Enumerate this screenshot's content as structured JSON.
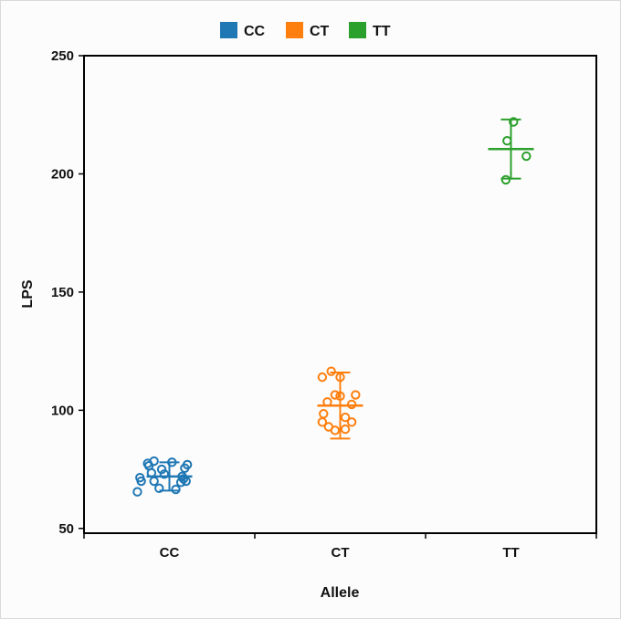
{
  "chart_data": {
    "type": "scatter",
    "subtype": "strip plot with mean and standard deviation bars",
    "xlabel": "Allele",
    "ylabel": "LPS",
    "categories": [
      "CC",
      "CT",
      "TT"
    ],
    "ylim": [
      48,
      250
    ],
    "yticks": [
      50,
      100,
      150,
      200,
      250
    ],
    "legend": {
      "position": "top-center",
      "entries": [
        "CC",
        "CT",
        "TT"
      ]
    },
    "grid": false,
    "series": [
      {
        "name": "CC",
        "color": "#1f77b4",
        "mean": 72,
        "sd": 6,
        "points": [
          {
            "offset": -0.25,
            "y": 65.5
          },
          {
            "offset": -0.23,
            "y": 71.5
          },
          {
            "offset": -0.22,
            "y": 70.0
          },
          {
            "offset": -0.17,
            "y": 77.5
          },
          {
            "offset": -0.16,
            "y": 76.5
          },
          {
            "offset": -0.14,
            "y": 73.5
          },
          {
            "offset": -0.12,
            "y": 78.5
          },
          {
            "offset": -0.12,
            "y": 70.0
          },
          {
            "offset": -0.08,
            "y": 67.0
          },
          {
            "offset": -0.06,
            "y": 75.0
          },
          {
            "offset": -0.04,
            "y": 73.0
          },
          {
            "offset": 0.02,
            "y": 78.0
          },
          {
            "offset": 0.05,
            "y": 66.5
          },
          {
            "offset": 0.09,
            "y": 69.5
          },
          {
            "offset": 0.1,
            "y": 72.0
          },
          {
            "offset": 0.11,
            "y": 71.0
          },
          {
            "offset": 0.12,
            "y": 75.5
          },
          {
            "offset": 0.13,
            "y": 70.0
          },
          {
            "offset": 0.14,
            "y": 77.0
          }
        ]
      },
      {
        "name": "CT",
        "color": "#ff7f0e",
        "mean": 102,
        "sd": 14,
        "points": [
          {
            "offset": -0.14,
            "y": 114.0
          },
          {
            "offset": -0.13,
            "y": 98.5
          },
          {
            "offset": -0.14,
            "y": 95.0
          },
          {
            "offset": -0.1,
            "y": 103.5
          },
          {
            "offset": -0.09,
            "y": 93.0
          },
          {
            "offset": -0.07,
            "y": 116.5
          },
          {
            "offset": -0.04,
            "y": 106.5
          },
          {
            "offset": -0.04,
            "y": 91.5
          },
          {
            "offset": 0.0,
            "y": 106.0
          },
          {
            "offset": 0.0,
            "y": 114.0
          },
          {
            "offset": 0.04,
            "y": 97.0
          },
          {
            "offset": 0.04,
            "y": 92.0
          },
          {
            "offset": 0.09,
            "y": 95.0
          },
          {
            "offset": 0.09,
            "y": 102.5
          },
          {
            "offset": 0.12,
            "y": 106.5
          }
        ]
      },
      {
        "name": "TT",
        "color": "#2ca02c",
        "mean": 210.5,
        "sd": 12.5,
        "points": [
          {
            "offset": -0.03,
            "y": 214.0
          },
          {
            "offset": -0.04,
            "y": 197.5
          },
          {
            "offset": 0.02,
            "y": 222.0
          },
          {
            "offset": 0.12,
            "y": 207.5
          }
        ]
      }
    ]
  }
}
